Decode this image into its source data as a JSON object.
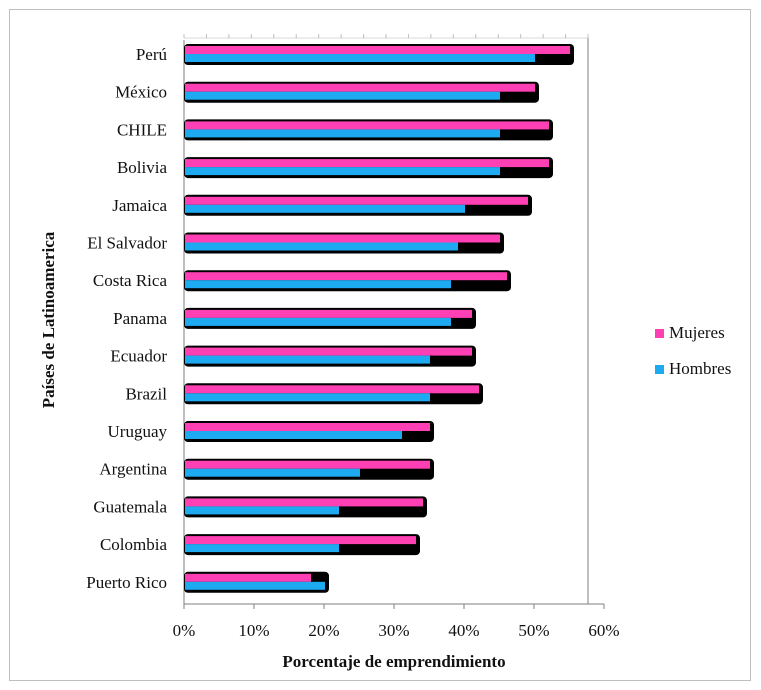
{
  "chart_data": {
    "type": "bar",
    "orientation": "horizontal",
    "categories": [
      "Perú",
      "México",
      "CHILE",
      "Bolivia",
      "Jamaica",
      "El Salvador",
      "Costa Rica",
      "Panama",
      "Ecuador",
      "Brazil",
      "Uruguay",
      "Argentina",
      "Guatemala",
      "Colombia",
      "Puerto Rico"
    ],
    "series": [
      {
        "name": "Mujeres",
        "color": "#ff3fb4",
        "values": [
          55,
          50,
          52,
          52,
          49,
          45,
          46,
          41,
          41,
          42,
          35,
          35,
          34,
          33,
          18
        ]
      },
      {
        "name": "Hombres",
        "color": "#1eaaf0",
        "values": [
          50,
          45,
          45,
          45,
          40,
          39,
          38,
          38,
          35,
          35,
          31,
          25,
          22,
          22,
          20
        ]
      }
    ],
    "xlabel": "Porcentaje de emprendimiento",
    "ylabel": "Países de Latinoamerica",
    "xlim": [
      0,
      60
    ],
    "xticks": [
      "0%",
      "10%",
      "20%",
      "30%",
      "40%",
      "50%",
      "60%"
    ],
    "legend_position": "right",
    "grid": false
  }
}
